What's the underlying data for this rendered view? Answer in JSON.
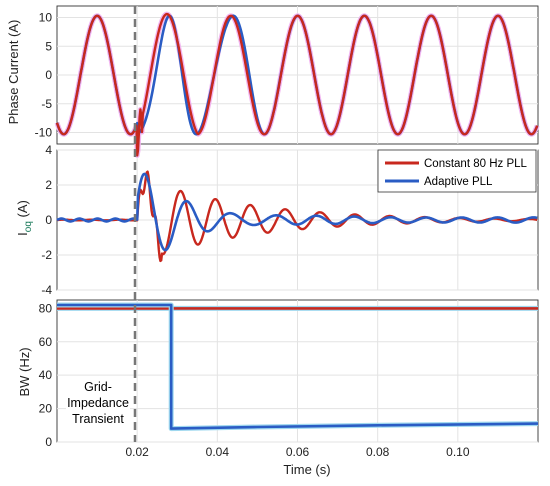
{
  "chart_data": [
    {
      "type": "line",
      "panel": "top",
      "ylabel": "Phase Current (A)",
      "ylim": [
        -12,
        12
      ],
      "yticks": [
        "10",
        "5",
        "0",
        "-5",
        "-10"
      ],
      "xlim": [
        0,
        0.12
      ],
      "grid": true,
      "x": [
        0.0,
        0.005,
        0.01,
        0.015,
        0.02,
        0.025,
        0.03,
        0.035,
        0.04,
        0.045,
        0.05,
        0.055,
        0.06,
        0.065,
        0.07,
        0.075,
        0.08,
        0.085,
        0.09,
        0.095,
        0.1,
        0.105,
        0.11,
        0.115,
        0.12
      ],
      "series": [
        {
          "name": "Constant 80 Hz PLL",
          "color": "#c8281e",
          "values": [
            -10.5,
            0,
            10.5,
            0,
            -10.5,
            11.5,
            -2,
            -10,
            10,
            2,
            -10.5,
            0,
            10.5,
            0,
            -10.5,
            0,
            10.5,
            0,
            -10.5,
            0,
            10.5,
            0,
            10.5,
            0,
            -10.5
          ]
        },
        {
          "name": "Adaptive PLL",
          "color": "#2a5cc4",
          "values": [
            -10.5,
            0,
            10.5,
            0,
            -10.5,
            11,
            -3,
            -9,
            10.2,
            1,
            -10,
            1,
            10,
            0,
            -10.3,
            0,
            10.4,
            0,
            -10.5,
            0,
            10.5,
            0,
            10.5,
            0,
            -10.5
          ]
        }
      ]
    },
    {
      "type": "line",
      "panel": "middle",
      "ylabel": "I_oq (A)",
      "ylim": [
        -4,
        4
      ],
      "yticks": [
        "4",
        "2",
        "0",
        "-2",
        "-4"
      ],
      "xlim": [
        0,
        0.12
      ],
      "grid": true,
      "legend": "top-right",
      "series": [
        {
          "name": "Constant 80 Hz PLL",
          "color": "#c8281e"
        },
        {
          "name": "Adaptive PLL",
          "color": "#2a5cc4"
        }
      ]
    },
    {
      "type": "line",
      "panel": "bottom",
      "ylabel": "BW (Hz)",
      "xlabel": "Time (s)",
      "ylim": [
        0,
        85
      ],
      "yticks": [
        "80",
        "60",
        "40",
        "20",
        "0"
      ],
      "xlim": [
        0,
        0.12
      ],
      "xticks": [
        "0.02",
        "0.04",
        "0.06",
        "0.08",
        "0.10"
      ],
      "grid": true,
      "series": [
        {
          "name": "Constant 80 Hz PLL",
          "color": "#c8281e",
          "x": [
            0,
            0.12
          ],
          "values": [
            80,
            80
          ]
        },
        {
          "name": "Adaptive PLL",
          "color": "#2a5cc4",
          "x": [
            0,
            0.0285,
            0.0285,
            0.05,
            0.08,
            0.12
          ],
          "values": [
            82,
            82,
            8,
            9,
            10,
            11
          ]
        }
      ],
      "annotation": {
        "x": 0.02,
        "lines": [
          "Grid-",
          "Impedance",
          "Transient"
        ]
      }
    }
  ],
  "legend": {
    "items": [
      {
        "label": "Constant 80 Hz PLL",
        "color": "#c8281e"
      },
      {
        "label": "Adaptive PLL",
        "color": "#2a5cc4"
      }
    ]
  }
}
